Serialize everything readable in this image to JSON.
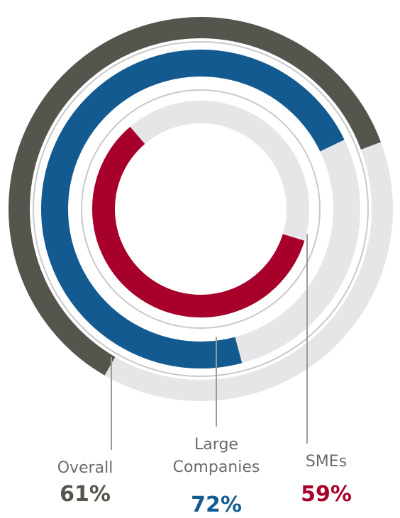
{
  "chart_data": {
    "type": "radial_bar",
    "categories": [
      "Overall",
      "Large Companies",
      "SMEs"
    ],
    "values": [
      61,
      72,
      59
    ],
    "value_labels": [
      "61%",
      "72%",
      "59%"
    ],
    "colors": [
      "#55554e",
      "#135a91",
      "#a6002b"
    ]
  }
}
